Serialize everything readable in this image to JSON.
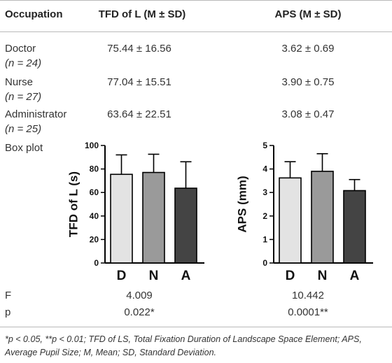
{
  "table": {
    "headers": {
      "occupation": "Occupation",
      "tfd": "TFD of L (M ± SD)",
      "aps": "APS (M ± SD)"
    },
    "rows": [
      {
        "label": "Doctor",
        "n": "(n = 24)",
        "tfd": "75.44 ± 16.56",
        "aps": "3.62 ± 0.69"
      },
      {
        "label": "Nurse",
        "n": "(n = 27)",
        "tfd": "77.04 ± 15.51",
        "aps": "3.90 ± 0.75"
      },
      {
        "label": "Administrator",
        "n": "(n = 25)",
        "tfd": "63.64 ± 22.51",
        "aps": "3.08 ± 0.47"
      }
    ],
    "boxplot_label": "Box plot",
    "f_label": "F",
    "f_tfd": "4.009",
    "f_aps": "10.442",
    "p_label": "p",
    "p_tfd": "0.022*",
    "p_aps": "0.0001**"
  },
  "footnote": "*p < 0.05, **p < 0.01; TFD of LS, Total Fixation Duration of Landscape Space Element; APS, Average Pupil Size; M, Mean; SD, Standard Deviation.",
  "chart_data": [
    {
      "type": "bar",
      "categories": [
        "D",
        "N",
        "A"
      ],
      "values": [
        75.44,
        77.04,
        63.64
      ],
      "errors": [
        16.56,
        15.51,
        22.51
      ],
      "ylabel": "TFD of L (s)",
      "ylim": [
        0,
        100
      ],
      "yticks": [
        0,
        20,
        40,
        60,
        80,
        100
      ],
      "colors": [
        "#e3e3e3",
        "#9a9a9a",
        "#444444"
      ]
    },
    {
      "type": "bar",
      "categories": [
        "D",
        "N",
        "A"
      ],
      "values": [
        3.62,
        3.9,
        3.08
      ],
      "errors": [
        0.69,
        0.75,
        0.47
      ],
      "ylabel": "APS (mm)",
      "ylim": [
        0,
        5
      ],
      "yticks": [
        0,
        1,
        2,
        3,
        4,
        5
      ],
      "colors": [
        "#e3e3e3",
        "#9a9a9a",
        "#444444"
      ]
    }
  ]
}
